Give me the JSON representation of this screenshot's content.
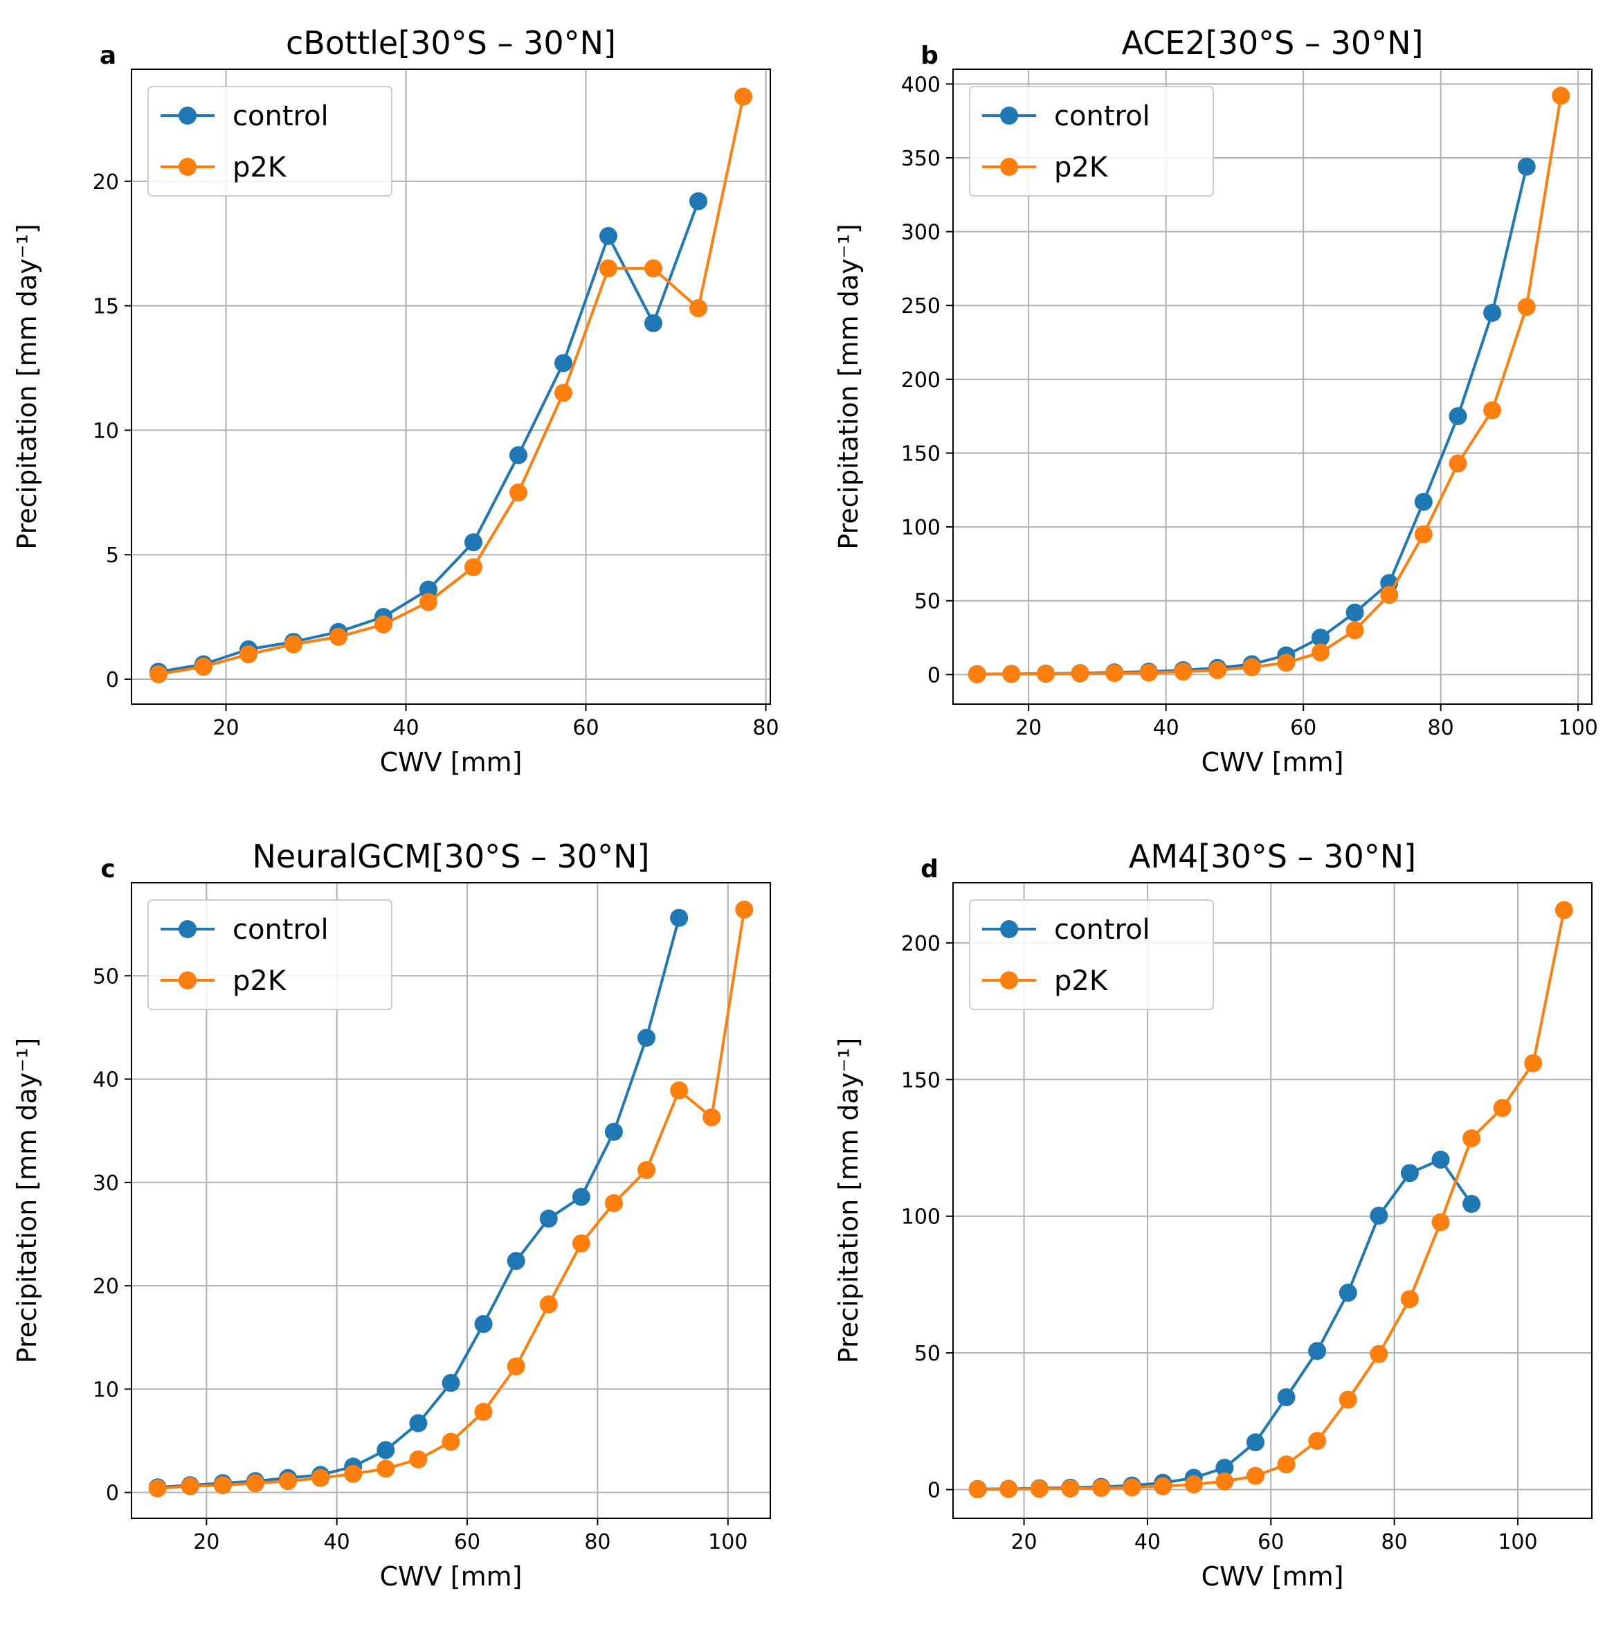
{
  "colors": {
    "control": "#1f77b4",
    "p2K": "#ff7f0e",
    "grid": "#b0b0b0",
    "axis": "#000000"
  },
  "chart_data": [
    {
      "type": "line",
      "panel_label": "a",
      "title": "cBottle[30°S – 30°N]",
      "xlabel": "CWV [mm]",
      "ylabel": "Precipitation [mm day⁻¹]",
      "xlim": [
        9.5,
        80.5
      ],
      "ylim": [
        -1,
        24.5
      ],
      "xticks": [
        20,
        40,
        60,
        80
      ],
      "yticks": [
        0,
        5,
        10,
        15,
        20
      ],
      "grid": true,
      "legend": "top-left",
      "series": [
        {
          "name": "control",
          "x": [
            12.5,
            17.5,
            22.5,
            27.5,
            32.5,
            37.5,
            42.5,
            47.5,
            52.5,
            57.5,
            62.5,
            67.5,
            72.5
          ],
          "y": [
            0.3,
            0.6,
            1.2,
            1.5,
            1.9,
            2.5,
            3.6,
            5.5,
            9.0,
            12.7,
            17.8,
            14.3,
            19.2
          ]
        },
        {
          "name": "p2K",
          "x": [
            12.5,
            17.5,
            22.5,
            27.5,
            32.5,
            37.5,
            42.5,
            47.5,
            52.5,
            57.5,
            62.5,
            67.5,
            72.5,
            77.5
          ],
          "y": [
            0.2,
            0.5,
            1.0,
            1.4,
            1.7,
            2.2,
            3.1,
            4.5,
            7.5,
            11.5,
            16.5,
            16.5,
            14.9,
            23.4
          ]
        }
      ]
    },
    {
      "type": "line",
      "panel_label": "b",
      "title": "ACE2[30°S – 30°N]",
      "xlabel": "CWV [mm]",
      "ylabel": "Precipitation [mm day⁻¹]",
      "xlim": [
        9,
        102
      ],
      "ylim": [
        -20,
        410
      ],
      "xticks": [
        20,
        40,
        60,
        80,
        100
      ],
      "yticks": [
        0,
        50,
        100,
        150,
        200,
        250,
        300,
        350,
        400
      ],
      "grid": true,
      "legend": "top-left",
      "series": [
        {
          "name": "control",
          "x": [
            12.5,
            17.5,
            22.5,
            27.5,
            32.5,
            37.5,
            42.5,
            47.5,
            52.5,
            57.5,
            62.5,
            67.5,
            72.5,
            77.5,
            82.5,
            87.5,
            92.5
          ],
          "y": [
            0.3,
            0.5,
            0.7,
            1,
            1.5,
            2,
            3,
            4.5,
            7,
            13,
            25,
            42,
            62,
            117,
            175,
            245,
            344
          ]
        },
        {
          "name": "p2K",
          "x": [
            12.5,
            17.5,
            22.5,
            27.5,
            32.5,
            37.5,
            42.5,
            47.5,
            52.5,
            57.5,
            62.5,
            67.5,
            72.5,
            77.5,
            82.5,
            87.5,
            92.5,
            97.5
          ],
          "y": [
            0.2,
            0.4,
            0.5,
            0.8,
            1,
            1.3,
            2,
            3,
            5,
            8,
            15,
            30,
            54,
            95,
            143,
            179,
            249,
            392
          ]
        }
      ]
    },
    {
      "type": "line",
      "panel_label": "c",
      "title": "NeuralGCM[30°S – 30°N]",
      "xlabel": "CWV [mm]",
      "ylabel": "Precipitation [mm day⁻¹]",
      "xlim": [
        8.5,
        106.5
      ],
      "ylim": [
        -2.5,
        59
      ],
      "xticks": [
        20,
        40,
        60,
        80,
        100
      ],
      "yticks": [
        0,
        10,
        20,
        30,
        40,
        50
      ],
      "grid": true,
      "legend": "top-left",
      "series": [
        {
          "name": "control",
          "x": [
            12.5,
            17.5,
            22.5,
            27.5,
            32.5,
            37.5,
            42.5,
            47.5,
            52.5,
            57.5,
            62.5,
            67.5,
            72.5,
            77.5,
            82.5,
            87.5,
            92.5
          ],
          "y": [
            0.5,
            0.7,
            0.9,
            1.1,
            1.4,
            1.7,
            2.5,
            4.1,
            6.7,
            10.6,
            16.3,
            22.4,
            26.5,
            28.6,
            34.9,
            44.0,
            55.6
          ]
        },
        {
          "name": "p2K",
          "x": [
            12.5,
            17.5,
            22.5,
            27.5,
            32.5,
            37.5,
            42.5,
            47.5,
            52.5,
            57.5,
            62.5,
            67.5,
            72.5,
            77.5,
            82.5,
            87.5,
            92.5,
            97.5,
            102.5
          ],
          "y": [
            0.4,
            0.6,
            0.7,
            0.9,
            1.1,
            1.4,
            1.8,
            2.3,
            3.2,
            4.9,
            7.8,
            12.2,
            18.2,
            24.1,
            28.0,
            31.2,
            38.9,
            36.3,
            56.4
          ]
        }
      ]
    },
    {
      "type": "line",
      "panel_label": "d",
      "title": "AM4[30°S – 30°N]",
      "xlabel": "CWV [mm]",
      "ylabel": "Precipitation [mm day⁻¹]",
      "xlim": [
        8.5,
        112
      ],
      "ylim": [
        -10.5,
        222
      ],
      "xticks": [
        20,
        40,
        60,
        80,
        100
      ],
      "yticks": [
        0,
        50,
        100,
        150,
        200
      ],
      "grid": true,
      "legend": "top-left",
      "series": [
        {
          "name": "control",
          "x": [
            12.5,
            17.5,
            22.5,
            27.5,
            32.5,
            37.5,
            42.5,
            47.5,
            52.5,
            57.5,
            62.5,
            67.5,
            72.5,
            77.5,
            82.5,
            87.5,
            92.5
          ],
          "y": [
            0.2,
            0.3,
            0.5,
            0.7,
            1.0,
            1.5,
            2.5,
            4.3,
            8.0,
            17.3,
            33.8,
            50.7,
            72.0,
            100.2,
            115.8,
            120.7,
            104.5
          ]
        },
        {
          "name": "p2K",
          "x": [
            12.5,
            17.5,
            22.5,
            27.5,
            32.5,
            37.5,
            42.5,
            47.5,
            52.5,
            57.5,
            62.5,
            67.5,
            72.5,
            77.5,
            82.5,
            87.5,
            92.5,
            97.5,
            102.5,
            107.5
          ],
          "y": [
            0.1,
            0.2,
            0.3,
            0.4,
            0.6,
            0.8,
            1.2,
            1.9,
            3.0,
            5.0,
            9.2,
            17.8,
            32.9,
            49.6,
            69.7,
            97.8,
            128.5,
            139.6,
            156.0,
            212.0
          ]
        }
      ]
    }
  ]
}
